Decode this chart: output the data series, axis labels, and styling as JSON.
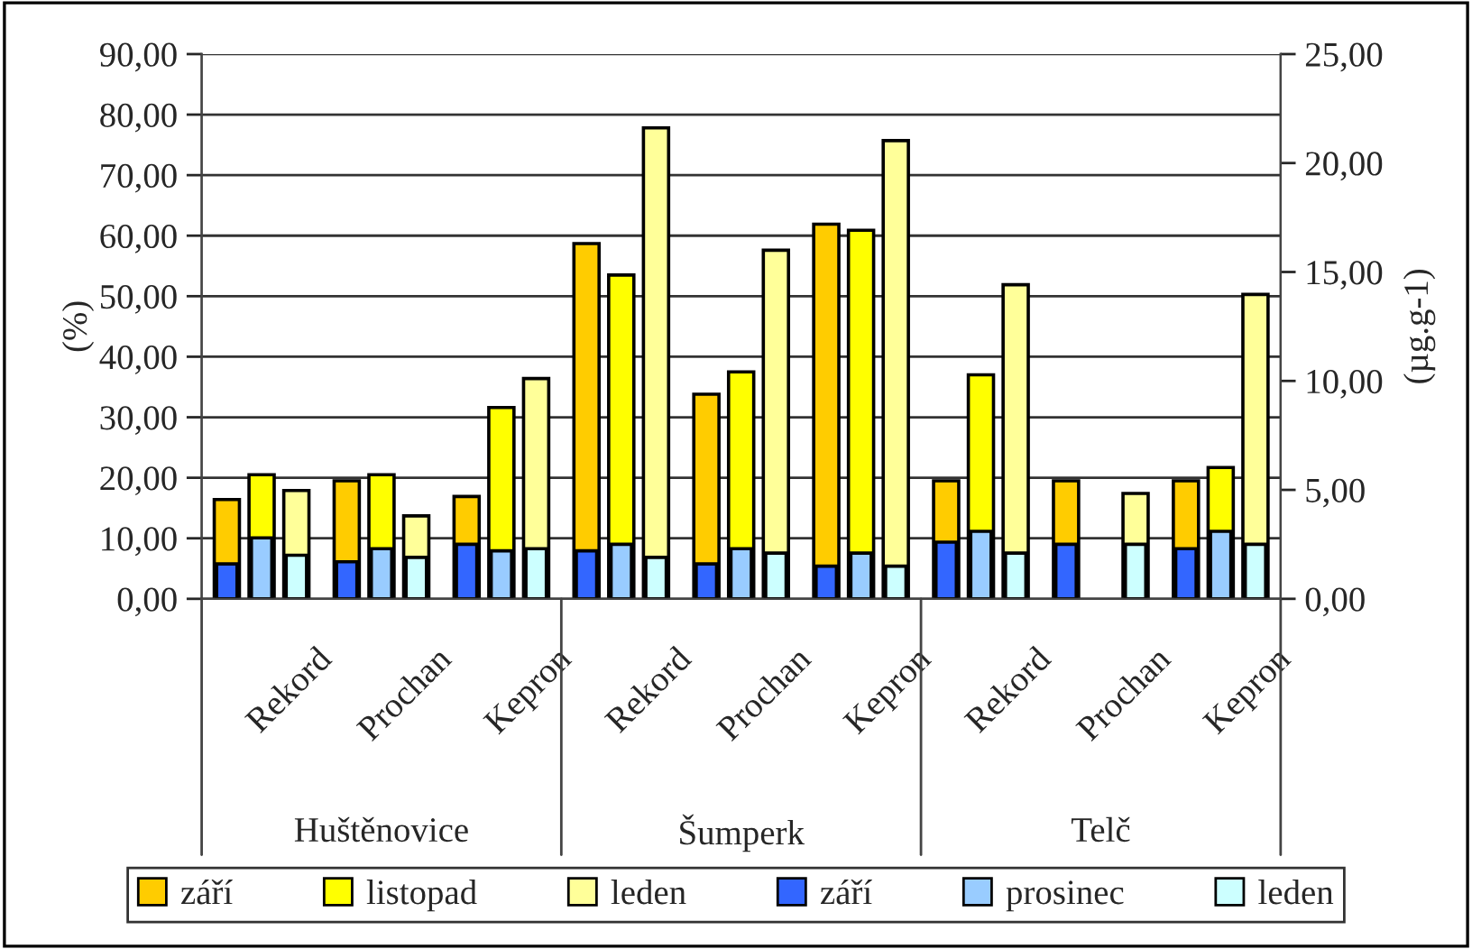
{
  "chart_data": {
    "type": "bar",
    "ylabel": "(%)",
    "y2label": "(µg.g-1)",
    "categories": [
      "Rekord",
      "Prochan",
      "Kepron",
      "Rekord",
      "Prochan",
      "Kepron",
      "Rekord",
      "Prochan",
      "Kepron"
    ],
    "annotations": [
      "Huštěnovice",
      "Šumperk",
      "Telč"
    ],
    "series": [
      {
        "name": "září",
        "color": "#ffcc00",
        "values": [
          16.4,
          19.5,
          16.9,
          58.7,
          33.8,
          61.9,
          19.5,
          19.5,
          19.5
        ]
      },
      {
        "name": "listopad",
        "color": "#ffff00",
        "values": [
          20.5,
          20.5,
          31.6,
          53.5,
          37.5,
          60.9,
          37.0,
          null,
          21.7
        ]
      },
      {
        "name": "leden",
        "color": "#ffff99",
        "values": [
          17.9,
          13.7,
          36.4,
          77.8,
          57.6,
          75.7,
          51.9,
          17.4,
          50.3
        ]
      },
      {
        "name": "září",
        "color": "#3366ff",
        "axis": "y2",
        "values": [
          1.6,
          1.7,
          2.5,
          2.2,
          1.6,
          1.5,
          2.6,
          2.5,
          2.3
        ]
      },
      {
        "name": "prosinec",
        "color": "#99ccff",
        "axis": "y2",
        "values": [
          2.8,
          2.3,
          2.2,
          2.5,
          2.3,
          2.1,
          3.1,
          null,
          3.1
        ]
      },
      {
        "name": "leden",
        "color": "#ccffff",
        "axis": "y2",
        "values": [
          2.0,
          1.9,
          2.3,
          1.9,
          2.1,
          1.5,
          2.1,
          2.5,
          2.5
        ]
      }
    ],
    "ylim": [
      0,
      90
    ],
    "yticks": [
      {
        "value": 0,
        "label": "0,00"
      },
      {
        "value": 10,
        "label": "10,00"
      },
      {
        "value": 20,
        "label": "20,00"
      },
      {
        "value": 30,
        "label": "30,00"
      },
      {
        "value": 40,
        "label": "40,00"
      },
      {
        "value": 50,
        "label": "50,00"
      },
      {
        "value": 60,
        "label": "60,00"
      },
      {
        "value": 70,
        "label": "70,00"
      },
      {
        "value": 80,
        "label": "80,00"
      },
      {
        "value": 90,
        "label": "90,00"
      }
    ],
    "y2lim": [
      0,
      25
    ],
    "y2ticks": [
      {
        "value": 0,
        "label": "0,00"
      },
      {
        "value": 5,
        "label": "5,00"
      },
      {
        "value": 10,
        "label": "10,00"
      },
      {
        "value": 15,
        "label": "15,00"
      },
      {
        "value": 20,
        "label": "20,00"
      },
      {
        "value": 25,
        "label": "25,00"
      }
    ],
    "grid": "y",
    "legend": "bottom"
  }
}
